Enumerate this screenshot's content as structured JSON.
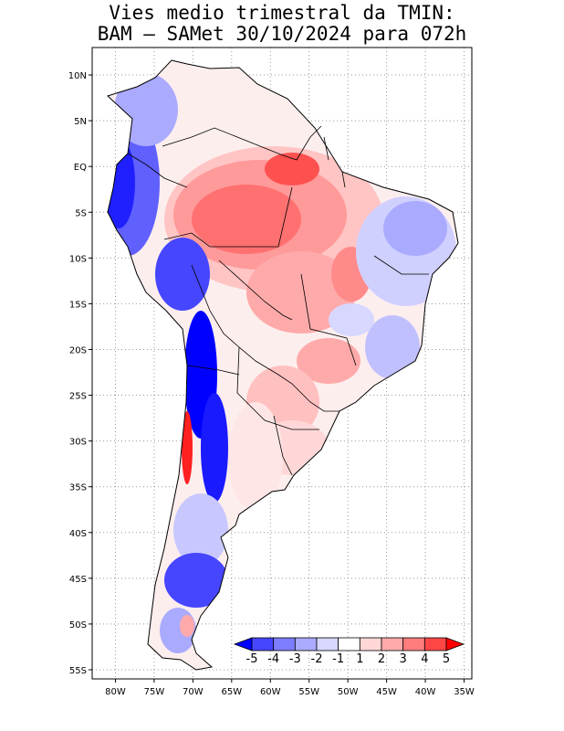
{
  "title_line1": "Vies medio trimestral da TMIN:",
  "title_line2": "BAM – SAMet 30/10/2024  para 072h",
  "map": {
    "lon_range": [
      -83,
      -34
    ],
    "lat_range": [
      -56,
      13
    ],
    "lon_ticks": [
      {
        "value": -80,
        "label": "80W"
      },
      {
        "value": -75,
        "label": "75W"
      },
      {
        "value": -70,
        "label": "70W"
      },
      {
        "value": -65,
        "label": "65W"
      },
      {
        "value": -60,
        "label": "60W"
      },
      {
        "value": -55,
        "label": "55W"
      },
      {
        "value": -50,
        "label": "50W"
      },
      {
        "value": -45,
        "label": "45W"
      },
      {
        "value": -40,
        "label": "40W"
      },
      {
        "value": -35,
        "label": "35W"
      }
    ],
    "lat_ticks": [
      {
        "value": 10,
        "label": "10N"
      },
      {
        "value": 5,
        "label": "5N"
      },
      {
        "value": 0,
        "label": "EQ"
      },
      {
        "value": -5,
        "label": "5S"
      },
      {
        "value": -10,
        "label": "10S"
      },
      {
        "value": -15,
        "label": "15S"
      },
      {
        "value": -20,
        "label": "20S"
      },
      {
        "value": -25,
        "label": "25S"
      },
      {
        "value": -30,
        "label": "30S"
      },
      {
        "value": -35,
        "label": "35S"
      },
      {
        "value": -40,
        "label": "40S"
      },
      {
        "value": -45,
        "label": "45S"
      },
      {
        "value": -50,
        "label": "50S"
      },
      {
        "value": -55,
        "label": "55S"
      }
    ],
    "grid": true
  },
  "colorbar": {
    "labels": [
      "-5",
      "-4",
      "-3",
      "-2",
      "-1",
      "1",
      "2",
      "3",
      "4",
      "5"
    ],
    "colors": [
      "#0000ff",
      "#4646ff",
      "#7d7dff",
      "#aaaaff",
      "#d7d7ff",
      "#ffffff",
      "#ffd7d7",
      "#ffaaaa",
      "#ff7d7d",
      "#ff4646",
      "#ff0000"
    ]
  }
}
